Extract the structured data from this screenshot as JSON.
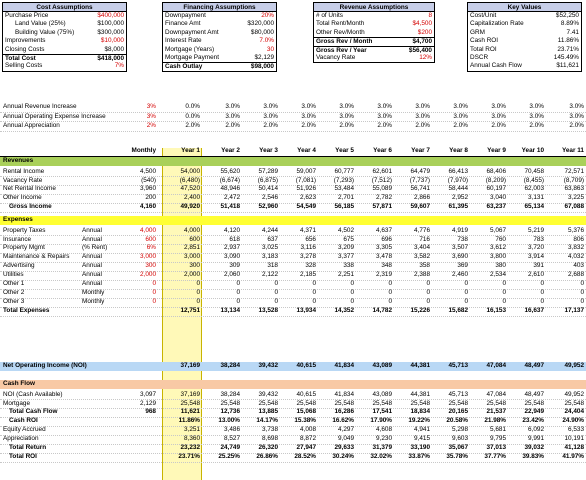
{
  "cost": {
    "title": "Cost Assumptions",
    "rows": [
      {
        "label": "Purchase Price",
        "value": "$400,000",
        "color": "red"
      },
      {
        "label": "Land Value (25%)",
        "value": "$100,000",
        "indent": true
      },
      {
        "label": "Building Value (75%)",
        "value": "$300,000",
        "indent": true
      },
      {
        "label": "Improvements",
        "value": "$10,000",
        "color": "red"
      },
      {
        "label": "Closing Costs",
        "value": "$8,000"
      },
      {
        "label": "Total Cost",
        "value": "$418,000",
        "total": true
      },
      {
        "label": "Selling Costs",
        "value": "7%",
        "color": "red"
      }
    ]
  },
  "financing": {
    "title": "Financing Assumptions",
    "rows": [
      {
        "label": "Downpayment",
        "value": "20%",
        "color": "red"
      },
      {
        "label": "Finance Amt",
        "value": "$320,000"
      },
      {
        "label": "Downpayment Amt",
        "value": "$80,000"
      },
      {
        "label": "Interest Rate",
        "value": "7.0%",
        "color": "red"
      },
      {
        "label": "Mortgage (Years)",
        "value": "30",
        "color": "red"
      },
      {
        "label": "Mortgage Payment",
        "value": "$2,129"
      },
      {
        "label": "Cash Outlay",
        "value": "$98,000",
        "total": true
      }
    ]
  },
  "revenue": {
    "title": "Revenue Assumptions",
    "rows": [
      {
        "label": "# of Units",
        "value": "8",
        "color": "red"
      },
      {
        "label": "Total Rent/Month",
        "value": "$4,500",
        "color": "red"
      },
      {
        "label": "Other Rev/Month",
        "value": "$200",
        "color": "red"
      },
      {
        "label": "Gross Rev / Month",
        "value": "$4,700",
        "total": true
      },
      {
        "label": "Gross Rev / Year",
        "value": "$56,400",
        "total": true
      },
      {
        "label": "Vacancy Rate",
        "value": "12%",
        "color": "red"
      }
    ]
  },
  "keyvalues": {
    "title": "Key Values",
    "rows": [
      {
        "label": "Cost/Unit",
        "value": "$52,250"
      },
      {
        "label": "Capitalization Rate",
        "value": "8.89%"
      },
      {
        "label": "GRM",
        "value": "7.41"
      },
      {
        "label": "Cash ROI",
        "value": "11.86%"
      },
      {
        "label": "Total ROI",
        "value": "23.71%"
      },
      {
        "label": "DSCR",
        "value": "145.49%"
      },
      {
        "label": "Annual Cash Flow",
        "value": "$11,621"
      }
    ]
  },
  "increases": [
    {
      "label": "Annual Revenue Increase",
      "rate": "3%",
      "vals": [
        "0.0%",
        "3.0%",
        "3.0%",
        "3.0%",
        "3.0%",
        "3.0%",
        "3.0%",
        "3.0%",
        "3.0%",
        "3.0%",
        "3.0%"
      ]
    },
    {
      "label": "Annual Operating Expense Increase",
      "rate": "3%",
      "vals": [
        "0.0%",
        "3.0%",
        "3.0%",
        "3.0%",
        "3.0%",
        "3.0%",
        "3.0%",
        "3.0%",
        "3.0%",
        "3.0%",
        "3.0%"
      ]
    },
    {
      "label": "Annual Appreciation",
      "rate": "2%",
      "vals": [
        "2.0%",
        "2.0%",
        "2.0%",
        "2.0%",
        "2.0%",
        "2.0%",
        "2.0%",
        "2.0%",
        "2.0%",
        "2.0%",
        "2.0%"
      ]
    }
  ],
  "header": {
    "monthly": "Monthly",
    "years": [
      "Year 1",
      "Year 2",
      "Year 3",
      "Year 4",
      "Year 5",
      "Year 6",
      "Year 7",
      "Year 8",
      "Year 9",
      "Year 10",
      "Year 11"
    ]
  },
  "revenues": {
    "title": "Revenues",
    "rows": [
      {
        "label": "Rental Income",
        "monthly": "4,500",
        "vals": [
          "54,000",
          "55,620",
          "57,289",
          "59,007",
          "60,777",
          "62,601",
          "64,479",
          "66,413",
          "68,406",
          "70,458",
          "72,571"
        ]
      },
      {
        "label": "Vacancy Rate",
        "monthly": "(540)",
        "vals": [
          "(6,480)",
          "(6,674)",
          "(6,875)",
          "(7,081)",
          "(7,293)",
          "(7,512)",
          "(7,737)",
          "(7,970)",
          "(8,209)",
          "(8,455)",
          "(8,709)"
        ]
      },
      {
        "label": "Net Rental Income",
        "monthly": "3,960",
        "vals": [
          "47,520",
          "48,946",
          "50,414",
          "51,926",
          "53,484",
          "55,089",
          "56,741",
          "58,444",
          "60,197",
          "62,003",
          "63,863"
        ]
      },
      {
        "label": "Other Income",
        "monthly": "200",
        "vals": [
          "2,400",
          "2,472",
          "2,546",
          "2,623",
          "2,701",
          "2,782",
          "2,866",
          "2,952",
          "3,040",
          "3,131",
          "3,225"
        ]
      },
      {
        "label": "Gross Income",
        "monthly": "4,160",
        "vals": [
          "49,920",
          "51,418",
          "52,960",
          "54,549",
          "56,185",
          "57,871",
          "59,607",
          "61,395",
          "63,237",
          "65,134",
          "67,088"
        ],
        "bold": true
      }
    ]
  },
  "expenses": {
    "title": "Expenses",
    "rows": [
      {
        "label": "Property Taxes",
        "freq": "Annual",
        "monthly": "4,000",
        "red": true,
        "vals": [
          "4,000",
          "4,120",
          "4,244",
          "4,371",
          "4,502",
          "4,637",
          "4,776",
          "4,919",
          "5,067",
          "5,219",
          "5,376"
        ]
      },
      {
        "label": "Insurance",
        "freq": "Annual",
        "monthly": "600",
        "red": true,
        "vals": [
          "600",
          "618",
          "637",
          "656",
          "675",
          "696",
          "716",
          "738",
          "760",
          "783",
          "806"
        ]
      },
      {
        "label": "Property Mgmt",
        "freq": "(% Rent)",
        "monthly": "6%",
        "red": true,
        "vals": [
          "2,851",
          "2,937",
          "3,025",
          "3,116",
          "3,209",
          "3,305",
          "3,404",
          "3,507",
          "3,612",
          "3,720",
          "3,832"
        ]
      },
      {
        "label": "Maintenance & Repairs",
        "freq": "Annual",
        "monthly": "3,000",
        "red": true,
        "vals": [
          "3,000",
          "3,090",
          "3,183",
          "3,278",
          "3,377",
          "3,478",
          "3,582",
          "3,690",
          "3,800",
          "3,914",
          "4,032"
        ]
      },
      {
        "label": "Advertising",
        "freq": "Annual",
        "monthly": "300",
        "red": true,
        "vals": [
          "300",
          "309",
          "318",
          "328",
          "338",
          "348",
          "358",
          "369",
          "380",
          "391",
          "403"
        ]
      },
      {
        "label": "Utilities",
        "freq": "Annual",
        "monthly": "2,000",
        "red": true,
        "vals": [
          "2,000",
          "2,060",
          "2,122",
          "2,185",
          "2,251",
          "2,319",
          "2,388",
          "2,460",
          "2,534",
          "2,610",
          "2,688"
        ]
      },
      {
        "label": "Other 1",
        "freq": "Annual",
        "monthly": "0",
        "red": true,
        "vals": [
          "0",
          "0",
          "0",
          "0",
          "0",
          "0",
          "0",
          "0",
          "0",
          "0",
          "0"
        ]
      },
      {
        "label": "Other 2",
        "freq": "Monthly",
        "monthly": "0",
        "red": true,
        "vals": [
          "0",
          "0",
          "0",
          "0",
          "0",
          "0",
          "0",
          "0",
          "0",
          "0",
          "0"
        ]
      },
      {
        "label": "Other 3",
        "freq": "Monthly",
        "monthly": "0",
        "red": true,
        "vals": [
          "0",
          "0",
          "0",
          "0",
          "0",
          "0",
          "0",
          "0",
          "0",
          "0",
          "0"
        ]
      },
      {
        "label": "Total Expenses",
        "freq": "",
        "monthly": "",
        "bold": true,
        "vals": [
          "12,751",
          "13,134",
          "13,528",
          "13,934",
          "14,352",
          "14,782",
          "15,226",
          "15,682",
          "16,153",
          "16,637",
          "17,137"
        ]
      }
    ]
  },
  "noi": {
    "label": "Net Operating Income (NOI)",
    "vals": [
      "37,169",
      "38,284",
      "39,432",
      "40,615",
      "41,834",
      "43,089",
      "44,381",
      "45,713",
      "47,084",
      "48,497",
      "49,952"
    ]
  },
  "cashflow": {
    "title": "Cash Flow",
    "rows": [
      {
        "label": "NOI (Cash Available)",
        "monthly": "3,097",
        "vals": [
          "37,169",
          "38,284",
          "39,432",
          "40,615",
          "41,834",
          "43,089",
          "44,381",
          "45,713",
          "47,084",
          "48,497",
          "49,952"
        ]
      },
      {
        "label": "Mortgage",
        "monthly": "2,129",
        "vals": [
          "25,548",
          "25,548",
          "25,548",
          "25,548",
          "25,548",
          "25,548",
          "25,548",
          "25,548",
          "25,548",
          "25,548",
          "25,548"
        ]
      },
      {
        "label": "Total Cash Flow",
        "monthly": "968",
        "bold": true,
        "vals": [
          "11,621",
          "12,736",
          "13,885",
          "15,068",
          "16,286",
          "17,541",
          "18,834",
          "20,165",
          "21,537",
          "22,949",
          "24,404"
        ]
      },
      {
        "label": "Cash ROI",
        "monthly": "",
        "bold": true,
        "vals": [
          "11.86%",
          "13.00%",
          "14.17%",
          "15.38%",
          "16.62%",
          "17.90%",
          "19.22%",
          "20.58%",
          "21.98%",
          "23.42%",
          "24.90%"
        ]
      },
      {
        "label": "Equity Accrued",
        "monthly": "",
        "vals": [
          "3,251",
          "3,486",
          "3,738",
          "4,008",
          "4,297",
          "4,608",
          "4,941",
          "5,298",
          "5,681",
          "6,092",
          "6,533"
        ]
      },
      {
        "label": "Appreciation",
        "monthly": "",
        "vals": [
          "8,360",
          "8,527",
          "8,698",
          "8,872",
          "9,049",
          "9,230",
          "9,415",
          "9,603",
          "9,795",
          "9,991",
          "10,191"
        ]
      },
      {
        "label": "Total Return",
        "monthly": "",
        "bold": true,
        "vals": [
          "23,232",
          "24,749",
          "26,320",
          "27,947",
          "29,633",
          "31,379",
          "33,190",
          "35,067",
          "37,013",
          "39,032",
          "41,128"
        ]
      },
      {
        "label": "Total ROI",
        "monthly": "",
        "bold": true,
        "vals": [
          "23.71%",
          "25.25%",
          "26.86%",
          "28.52%",
          "30.24%",
          "32.02%",
          "33.87%",
          "35.78%",
          "37.77%",
          "39.83%",
          "41.97%"
        ]
      }
    ]
  }
}
